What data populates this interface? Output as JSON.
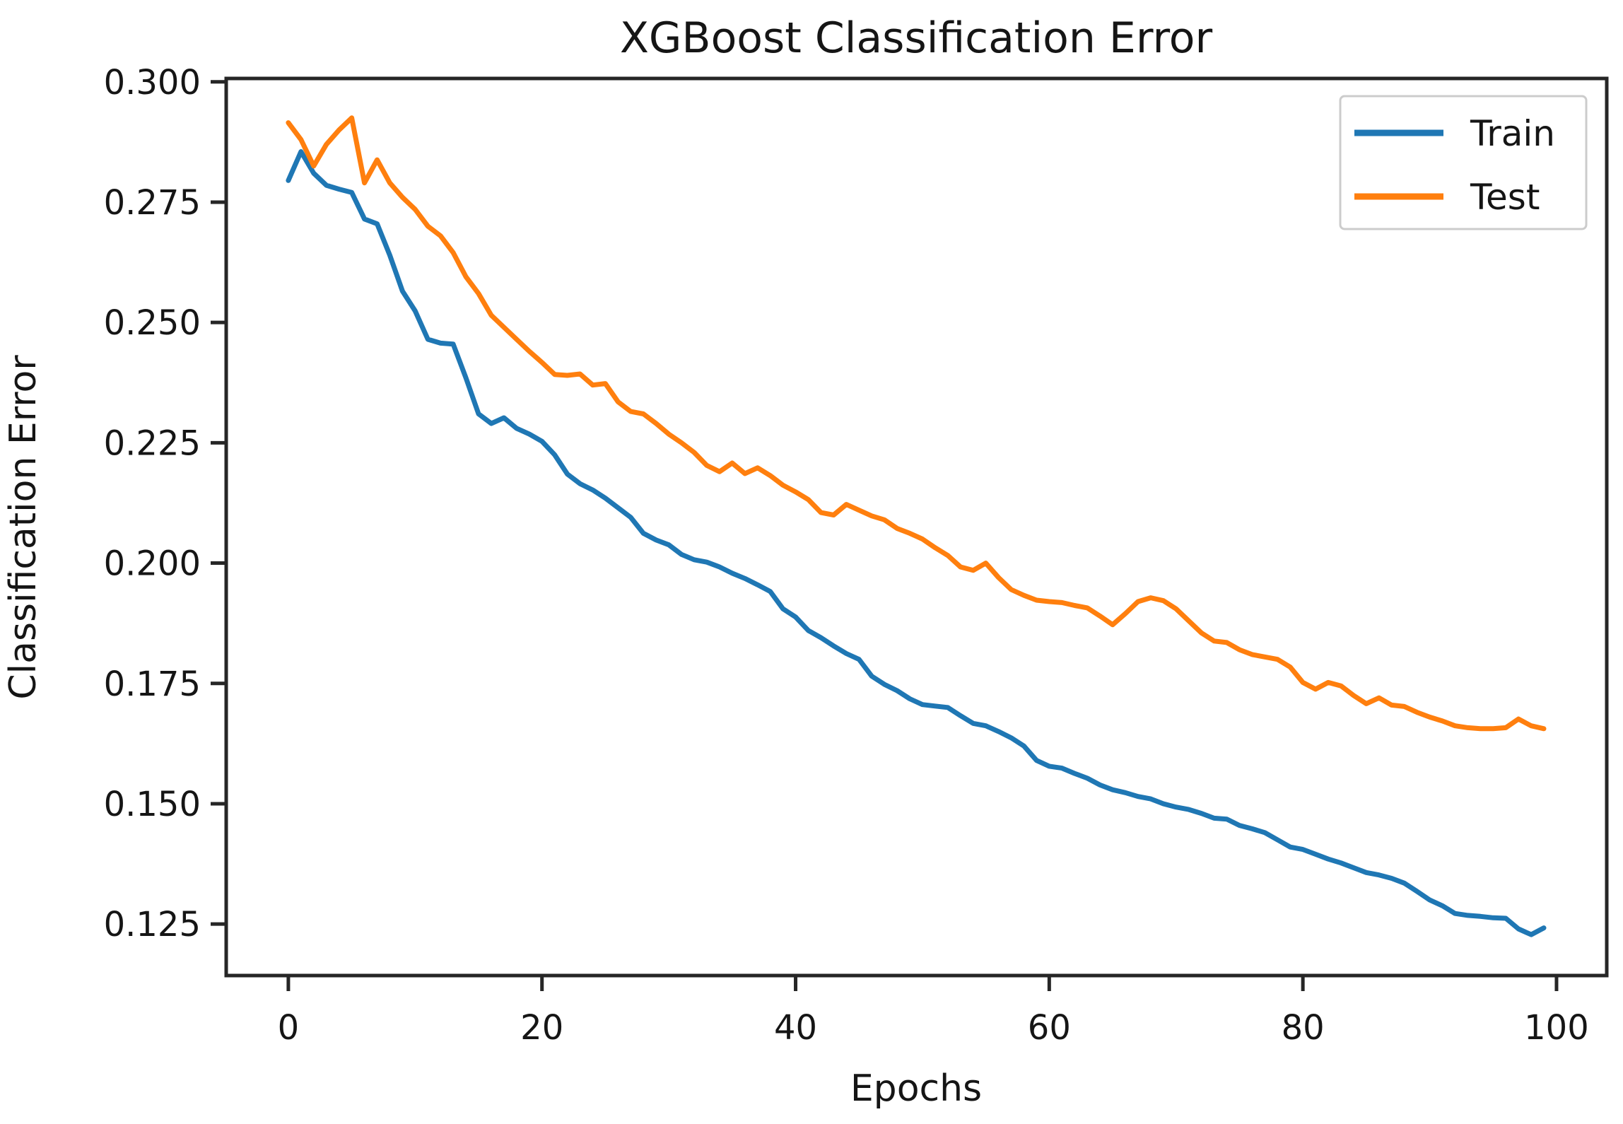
{
  "figure": {
    "background": "#ffffff",
    "spine_color": "#262626",
    "text_color": "#151515"
  },
  "chart_data": {
    "type": "line",
    "title": "XGBoost Classification Error",
    "xlabel": "Epochs",
    "ylabel": "Classification Error",
    "grid": false,
    "xlim": [
      -4.9,
      103.96
    ],
    "ylim": [
      0.1143,
      0.3007
    ],
    "x_ticks": [
      "0",
      "20",
      "40",
      "60",
      "80",
      "100"
    ],
    "y_ticks": [
      "0.300",
      "0.275",
      "0.250",
      "0.225",
      "0.200",
      "0.175",
      "0.150",
      "0.125"
    ],
    "legend": {
      "position": "upper right",
      "entries": [
        "Train",
        "Test"
      ]
    },
    "x": [
      0,
      1,
      2,
      3,
      4,
      5,
      6,
      7,
      8,
      9,
      10,
      11,
      12,
      13,
      14,
      15,
      16,
      17,
      18,
      19,
      20,
      21,
      22,
      23,
      24,
      25,
      26,
      27,
      28,
      29,
      30,
      31,
      32,
      33,
      34,
      35,
      36,
      37,
      38,
      39,
      40,
      41,
      42,
      43,
      44,
      45,
      46,
      47,
      48,
      49,
      50,
      51,
      52,
      53,
      54,
      55,
      56,
      57,
      58,
      59,
      60,
      61,
      62,
      63,
      64,
      65,
      66,
      67,
      68,
      69,
      70,
      71,
      72,
      73,
      74,
      75,
      76,
      77,
      78,
      79,
      80,
      81,
      82,
      83,
      84,
      85,
      86,
      87,
      88,
      89,
      90,
      91,
      92,
      93,
      94,
      95,
      96,
      97,
      98,
      99
    ],
    "series": [
      {
        "name": "Train",
        "color": "#1f77b4",
        "values": [
          0.2795,
          0.2855,
          0.281,
          0.2785,
          0.2777,
          0.277,
          0.2715,
          0.2705,
          0.264,
          0.2565,
          0.2524,
          0.2465,
          0.2457,
          0.2455,
          0.2385,
          0.231,
          0.229,
          0.2302,
          0.228,
          0.2268,
          0.2253,
          0.2225,
          0.2185,
          0.2165,
          0.2152,
          0.2135,
          0.2115,
          0.2095,
          0.2062,
          0.2048,
          0.2038,
          0.2018,
          0.2007,
          0.2002,
          0.1992,
          0.1979,
          0.1968,
          0.1955,
          0.1941,
          0.1905,
          0.1888,
          0.186,
          0.1845,
          0.1828,
          0.1812,
          0.18,
          0.1765,
          0.1748,
          0.1735,
          0.1718,
          0.1706,
          0.1703,
          0.17,
          0.1683,
          0.1667,
          0.1662,
          0.165,
          0.1637,
          0.162,
          0.159,
          0.1578,
          0.1574,
          0.1563,
          0.1553,
          0.1539,
          0.1529,
          0.1523,
          0.1515,
          0.151,
          0.15,
          0.1493,
          0.1488,
          0.148,
          0.147,
          0.1468,
          0.1455,
          0.1448,
          0.144,
          0.1425,
          0.141,
          0.1405,
          0.1395,
          0.1385,
          0.1377,
          0.1367,
          0.1357,
          0.1352,
          0.1345,
          0.1335,
          0.1318,
          0.13,
          0.1288,
          0.1272,
          0.1268,
          0.1266,
          0.1263,
          0.1262,
          0.124,
          0.1228,
          0.1242
        ]
      },
      {
        "name": "Test",
        "color": "#ff7f0e",
        "values": [
          0.2915,
          0.288,
          0.2825,
          0.287,
          0.29,
          0.2925,
          0.279,
          0.2838,
          0.279,
          0.276,
          0.2735,
          0.27,
          0.268,
          0.2645,
          0.2595,
          0.256,
          0.2515,
          0.249,
          0.2465,
          0.244,
          0.2417,
          0.2392,
          0.239,
          0.2393,
          0.237,
          0.2373,
          0.2335,
          0.2315,
          0.231,
          0.229,
          0.2268,
          0.225,
          0.223,
          0.2203,
          0.219,
          0.2208,
          0.2186,
          0.2198,
          0.2182,
          0.2162,
          0.2148,
          0.2132,
          0.2105,
          0.21,
          0.2122,
          0.211,
          0.2098,
          0.209,
          0.2072,
          0.2062,
          0.205,
          0.2032,
          0.2016,
          0.1992,
          0.1985,
          0.2,
          0.197,
          0.1945,
          0.1933,
          0.1923,
          0.192,
          0.1918,
          0.1912,
          0.1907,
          0.189,
          0.1872,
          0.1895,
          0.192,
          0.1928,
          0.1922,
          0.1905,
          0.188,
          0.1855,
          0.1838,
          0.1835,
          0.182,
          0.181,
          0.1805,
          0.18,
          0.1784,
          0.1752,
          0.1738,
          0.1752,
          0.1745,
          0.1725,
          0.1708,
          0.172,
          0.1705,
          0.1702,
          0.169,
          0.168,
          0.1672,
          0.1662,
          0.1658,
          0.1656,
          0.1656,
          0.1658,
          0.1676,
          0.1662,
          0.1656
        ]
      }
    ]
  }
}
